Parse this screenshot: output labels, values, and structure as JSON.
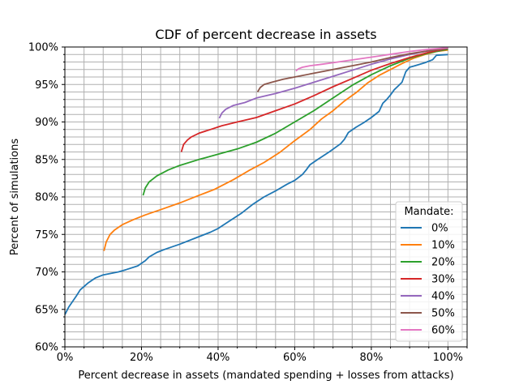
{
  "chart_data": {
    "type": "line",
    "title": "CDF of percent decrease in assets",
    "xlabel": "Percent decrease in assets (mandated spending + losses from attacks)",
    "ylabel": "Percent of simulations",
    "xlim": [
      0,
      105
    ],
    "ylim": [
      60,
      100
    ],
    "x_ticks": [
      0,
      20,
      40,
      60,
      80,
      100
    ],
    "x_tick_labels": [
      "0%",
      "20%",
      "40%",
      "60%",
      "80%",
      "100%"
    ],
    "y_ticks": [
      60,
      65,
      70,
      75,
      80,
      85,
      90,
      95,
      100
    ],
    "y_tick_labels": [
      "60%",
      "65%",
      "70%",
      "75%",
      "80%",
      "85%",
      "90%",
      "95%",
      "100%"
    ],
    "grid": true,
    "legend_title": "Mandate:",
    "legend_position": "lower-right",
    "series": [
      {
        "name": "0%",
        "color": "#1f77b4",
        "points": [
          [
            0,
            64.3
          ],
          [
            1,
            65.3
          ],
          [
            3,
            66.8
          ],
          [
            4,
            67.6
          ],
          [
            6,
            68.5
          ],
          [
            8,
            69.2
          ],
          [
            10,
            69.6
          ],
          [
            14,
            70.0
          ],
          [
            16,
            70.3
          ],
          [
            19,
            70.8
          ],
          [
            21,
            71.5
          ],
          [
            22,
            72.0
          ],
          [
            24,
            72.6
          ],
          [
            26,
            73.0
          ],
          [
            30,
            73.7
          ],
          [
            34,
            74.5
          ],
          [
            38,
            75.3
          ],
          [
            40,
            75.8
          ],
          [
            43,
            76.8
          ],
          [
            46,
            77.8
          ],
          [
            49,
            79.0
          ],
          [
            52,
            80.0
          ],
          [
            55,
            80.8
          ],
          [
            58,
            81.7
          ],
          [
            60,
            82.2
          ],
          [
            62,
            83.0
          ],
          [
            63,
            83.6
          ],
          [
            64,
            84.3
          ],
          [
            66,
            85.0
          ],
          [
            69,
            86.0
          ],
          [
            72,
            87.1
          ],
          [
            73,
            87.7
          ],
          [
            74,
            88.6
          ],
          [
            76,
            89.3
          ],
          [
            78,
            89.9
          ],
          [
            80,
            90.6
          ],
          [
            82,
            91.4
          ],
          [
            83,
            92.5
          ],
          [
            84,
            93.0
          ],
          [
            85,
            93.6
          ],
          [
            86,
            94.3
          ],
          [
            87,
            94.8
          ],
          [
            88,
            95.3
          ],
          [
            89,
            96.7
          ],
          [
            90,
            97.3
          ],
          [
            92,
            97.6
          ],
          [
            94,
            97.9
          ],
          [
            96,
            98.3
          ],
          [
            97,
            98.9
          ],
          [
            100,
            99.0
          ]
        ]
      },
      {
        "name": "10%",
        "color": "#ff7f0e",
        "points": [
          [
            10.2,
            72.8
          ],
          [
            10.8,
            74.0
          ],
          [
            11.8,
            75.0
          ],
          [
            13,
            75.6
          ],
          [
            15,
            76.3
          ],
          [
            18,
            77.0
          ],
          [
            21,
            77.6
          ],
          [
            25,
            78.3
          ],
          [
            30,
            79.2
          ],
          [
            35,
            80.2
          ],
          [
            39,
            81.0
          ],
          [
            44,
            82.3
          ],
          [
            48,
            83.5
          ],
          [
            52,
            84.6
          ],
          [
            56,
            85.9
          ],
          [
            60,
            87.5
          ],
          [
            64,
            89.0
          ],
          [
            67,
            90.4
          ],
          [
            70,
            91.5
          ],
          [
            73,
            92.8
          ],
          [
            76,
            93.9
          ],
          [
            79,
            95.2
          ],
          [
            82,
            96.2
          ],
          [
            85,
            97.0
          ],
          [
            88,
            97.8
          ],
          [
            91,
            98.5
          ],
          [
            94,
            99.0
          ],
          [
            97,
            99.4
          ],
          [
            100,
            99.6
          ]
        ]
      },
      {
        "name": "20%",
        "color": "#2ca02c",
        "points": [
          [
            20.4,
            80.2
          ],
          [
            21,
            81.2
          ],
          [
            22,
            82.0
          ],
          [
            24,
            82.8
          ],
          [
            27,
            83.6
          ],
          [
            30,
            84.2
          ],
          [
            35,
            85.0
          ],
          [
            40,
            85.7
          ],
          [
            45,
            86.4
          ],
          [
            50,
            87.3
          ],
          [
            55,
            88.5
          ],
          [
            60,
            90.0
          ],
          [
            65,
            91.5
          ],
          [
            70,
            93.2
          ],
          [
            75,
            94.9
          ],
          [
            80,
            96.3
          ],
          [
            85,
            97.5
          ],
          [
            90,
            98.5
          ],
          [
            95,
            99.2
          ],
          [
            100,
            99.7
          ]
        ]
      },
      {
        "name": "30%",
        "color": "#d62728",
        "points": [
          [
            30.4,
            86.0
          ],
          [
            31,
            87.0
          ],
          [
            32,
            87.6
          ],
          [
            33,
            88.0
          ],
          [
            35,
            88.5
          ],
          [
            38,
            89.0
          ],
          [
            41,
            89.5
          ],
          [
            45,
            90.0
          ],
          [
            50,
            90.6
          ],
          [
            55,
            91.5
          ],
          [
            60,
            92.4
          ],
          [
            65,
            93.5
          ],
          [
            70,
            94.7
          ],
          [
            75,
            95.8
          ],
          [
            80,
            96.9
          ],
          [
            85,
            97.8
          ],
          [
            90,
            98.6
          ],
          [
            95,
            99.3
          ],
          [
            100,
            99.8
          ]
        ]
      },
      {
        "name": "40%",
        "color": "#9467bd",
        "points": [
          [
            40.3,
            90.5
          ],
          [
            41,
            91.2
          ],
          [
            42,
            91.7
          ],
          [
            44,
            92.2
          ],
          [
            47,
            92.6
          ],
          [
            50,
            93.2
          ],
          [
            55,
            93.8
          ],
          [
            60,
            94.5
          ],
          [
            65,
            95.3
          ],
          [
            70,
            96.1
          ],
          [
            75,
            96.9
          ],
          [
            80,
            97.7
          ],
          [
            85,
            98.4
          ],
          [
            90,
            99.0
          ],
          [
            95,
            99.5
          ],
          [
            100,
            99.8
          ]
        ]
      },
      {
        "name": "50%",
        "color": "#8c564b",
        "points": [
          [
            50.3,
            94.0
          ],
          [
            51,
            94.6
          ],
          [
            52,
            95.0
          ],
          [
            54,
            95.3
          ],
          [
            57,
            95.7
          ],
          [
            60,
            96.0
          ],
          [
            64,
            96.4
          ],
          [
            68,
            96.8
          ],
          [
            72,
            97.2
          ],
          [
            76,
            97.6
          ],
          [
            80,
            98.0
          ],
          [
            85,
            98.6
          ],
          [
            90,
            99.1
          ],
          [
            95,
            99.5
          ],
          [
            100,
            99.8
          ]
        ]
      },
      {
        "name": "60%",
        "color": "#e377c2",
        "points": [
          [
            60.3,
            96.8
          ],
          [
            61,
            97.1
          ],
          [
            62,
            97.3
          ],
          [
            64,
            97.5
          ],
          [
            67,
            97.7
          ],
          [
            70,
            97.9
          ],
          [
            74,
            98.2
          ],
          [
            78,
            98.5
          ],
          [
            82,
            98.8
          ],
          [
            86,
            99.1
          ],
          [
            90,
            99.4
          ],
          [
            95,
            99.7
          ],
          [
            100,
            99.9
          ]
        ]
      }
    ]
  }
}
